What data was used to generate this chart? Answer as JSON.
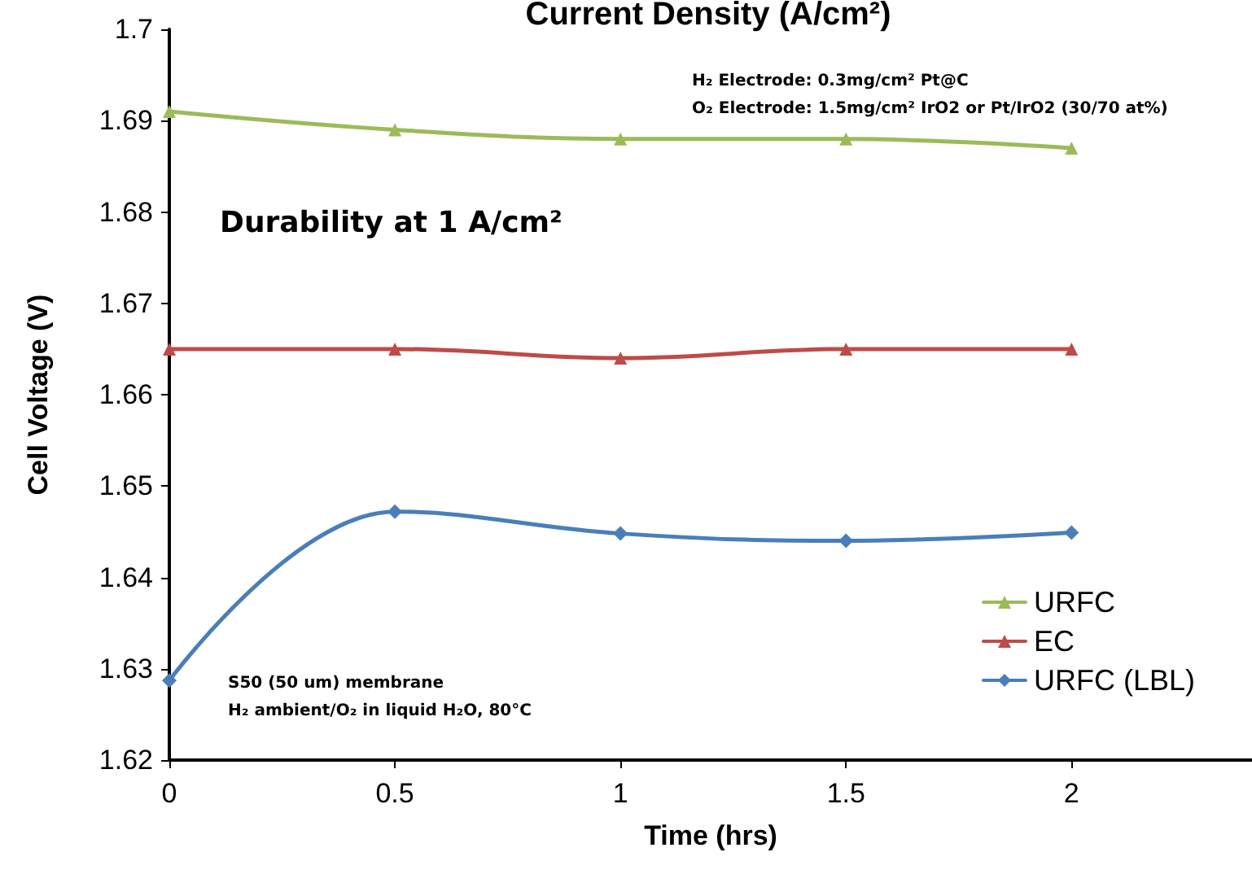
{
  "chart_data": {
    "type": "line",
    "title": "Current Density (A/cm²)",
    "xlabel": "Time (hrs)",
    "ylabel": "Cell Voltage (V)",
    "annotations": [
      "Durability at 1 A/cm²",
      "H₂ Electrode: 0.3mg/cm² Pt@C",
      "O₂ Electrode: 1.5mg/cm² IrO2 or Pt/IrO2 (30/70 at%)",
      "S50 (50 um) membrane",
      "H₂ ambient/O₂ in liquid H₂O, 80°C"
    ],
    "x": [
      0,
      0.5,
      1,
      1.5,
      2
    ],
    "series": [
      {
        "name": "URFC",
        "color": "#9bbb59",
        "marker": "triangle",
        "values": [
          1.691,
          1.689,
          1.688,
          1.688,
          1.687
        ]
      },
      {
        "name": "EC",
        "color": "#be4b48",
        "marker": "triangle",
        "values": [
          1.665,
          1.665,
          1.664,
          1.665,
          1.665
        ]
      },
      {
        "name": "URFC (LBL)",
        "color": "#4a7ebb",
        "marker": "diamond",
        "values": [
          1.6287,
          1.6472,
          1.6448,
          1.644,
          1.6449
        ]
      }
    ],
    "xlim": [
      0,
      2.4
    ],
    "xticks": [
      0,
      0.5,
      1,
      1.5,
      2
    ],
    "ylim": [
      1.62,
      1.7
    ],
    "yticks": [
      1.62,
      1.63,
      1.64,
      1.65,
      1.66,
      1.67,
      1.68,
      1.69,
      1.7
    ],
    "grid": false,
    "legend": "bottom right",
    "line_style": "solid"
  }
}
